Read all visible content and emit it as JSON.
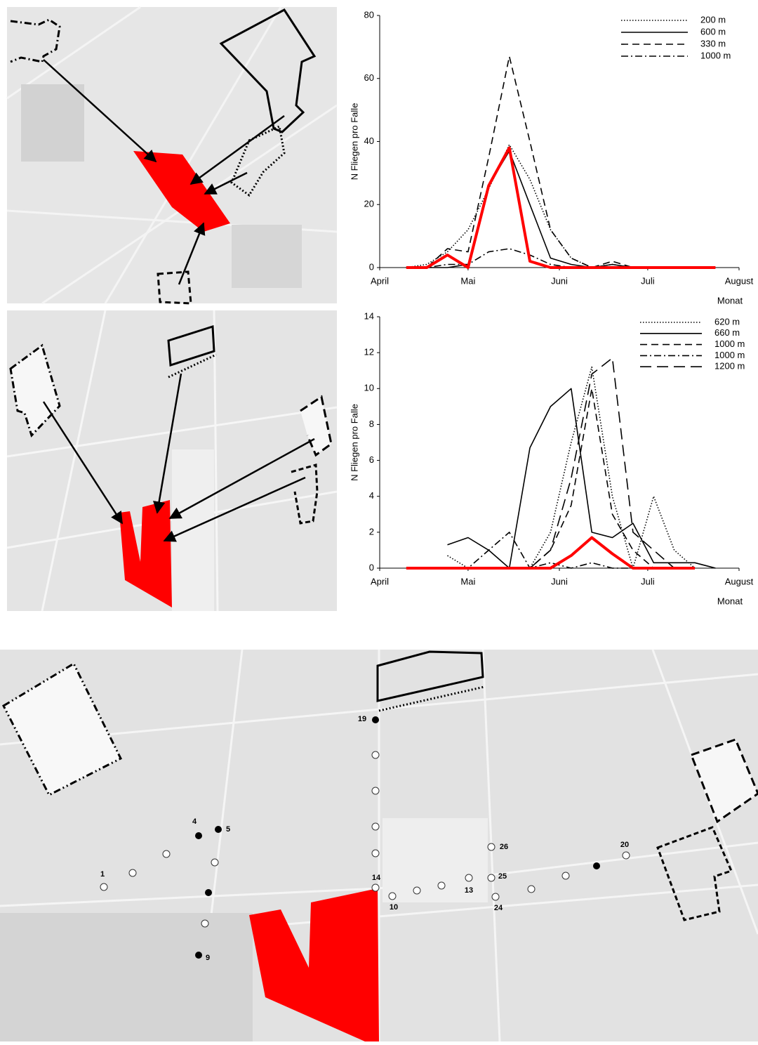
{
  "chart_data": [
    {
      "type": "line",
      "xlabel": "Monat",
      "ylabel": "N Fliegen pro Falle",
      "x": [
        9,
        16,
        23,
        30,
        37,
        44,
        51,
        58,
        65,
        72,
        79,
        86,
        93,
        100,
        107,
        114
      ],
      "xlim": [
        0,
        122
      ],
      "xticks": [
        {
          "value": 0,
          "label": "April"
        },
        {
          "value": 30,
          "label": "Mai"
        },
        {
          "value": 61,
          "label": "Juni"
        },
        {
          "value": 91,
          "label": "Juli"
        },
        {
          "value": 122,
          "label": "August"
        }
      ],
      "ylim": [
        0,
        80
      ],
      "yticks": [
        0,
        20,
        40,
        60,
        80
      ],
      "legend": "upper right",
      "series": [
        {
          "name": "200 m",
          "color": "#000000",
          "style": "dotted",
          "values": [
            0,
            1,
            5,
            12,
            25,
            39,
            28,
            12,
            3,
            0,
            1,
            0,
            0,
            0,
            0,
            0
          ]
        },
        {
          "name": "600 m",
          "color": "#000000",
          "style": "solid",
          "values": [
            0,
            0,
            0,
            1,
            26,
            37,
            20,
            3,
            1,
            0,
            1,
            0,
            0,
            0,
            0,
            null
          ]
        },
        {
          "name": "330 m",
          "color": "#000000",
          "style": "dashed",
          "values": [
            0,
            0,
            6,
            5,
            35,
            67,
            40,
            12,
            3,
            0,
            2,
            0,
            0,
            0,
            0,
            0
          ]
        },
        {
          "name": "1000 m",
          "color": "#000000",
          "style": "dashdot",
          "values": [
            0,
            0,
            1,
            1,
            5,
            6,
            4,
            1,
            0,
            0,
            0,
            0,
            0,
            0,
            0,
            0
          ]
        },
        {
          "color": "#ff0000",
          "style": "bold",
          "values": [
            0,
            0,
            4,
            0,
            26,
            38,
            2,
            0,
            0,
            0,
            0,
            0,
            0,
            0,
            0,
            0
          ]
        }
      ]
    },
    {
      "type": "line",
      "xlabel": "Monat",
      "ylabel": "N Fliegen pro Falle",
      "x": [
        9,
        16,
        23,
        30,
        37,
        44,
        51,
        58,
        65,
        72,
        79,
        86,
        93,
        100,
        107,
        114
      ],
      "xlim": [
        0,
        122
      ],
      "xticks": [
        {
          "value": 0,
          "label": "April"
        },
        {
          "value": 30,
          "label": "Mai"
        },
        {
          "value": 61,
          "label": "Juni"
        },
        {
          "value": 91,
          "label": "Juli"
        },
        {
          "value": 122,
          "label": "August"
        }
      ],
      "ylim": [
        0,
        14
      ],
      "yticks": [
        0,
        2,
        4,
        6,
        8,
        10,
        12,
        14
      ],
      "legend": "upper right",
      "series": [
        {
          "name": "620 m",
          "color": "#000000",
          "style": "dotted",
          "values": [
            null,
            null,
            0.7,
            0,
            0,
            0,
            0,
            2,
            7,
            11.2,
            4,
            0,
            4,
            1,
            0,
            null
          ]
        },
        {
          "name": "660 m",
          "color": "#000000",
          "style": "solid",
          "values": [
            null,
            null,
            1.3,
            1.7,
            1,
            0,
            6.7,
            9,
            10,
            2,
            1.7,
            2.5,
            0.3,
            0.3,
            0.3,
            0
          ]
        },
        {
          "name": "1000 m",
          "color": "#000000",
          "style": "dashed",
          "values": [
            null,
            null,
            0,
            0,
            0,
            0,
            0,
            1,
            3.5,
            10,
            3,
            1,
            0,
            0,
            0,
            null
          ]
        },
        {
          "name": "1000 m",
          "color": "#000000",
          "style": "dashdot",
          "values": [
            null,
            null,
            0,
            0,
            1,
            2,
            0,
            0.3,
            0,
            0.3,
            0,
            0,
            0,
            0,
            null,
            null
          ]
        },
        {
          "name": "1200 m",
          "color": "#000000",
          "style": "longdash",
          "values": [
            null,
            null,
            0,
            0,
            0,
            0,
            0,
            1,
            5,
            10.8,
            11.7,
            2,
            1,
            0,
            0,
            null
          ]
        },
        {
          "color": "#ff0000",
          "style": "bold",
          "values": [
            0,
            0,
            0,
            0,
            0,
            0,
            0,
            0,
            0.7,
            1.7,
            0.8,
            0,
            0,
            0,
            0,
            null
          ]
        }
      ]
    }
  ],
  "map": {
    "trap_labels": [
      "1",
      "4",
      "5",
      "9",
      "10",
      "13",
      "14",
      "19",
      "20",
      "24",
      "25",
      "26"
    ]
  }
}
